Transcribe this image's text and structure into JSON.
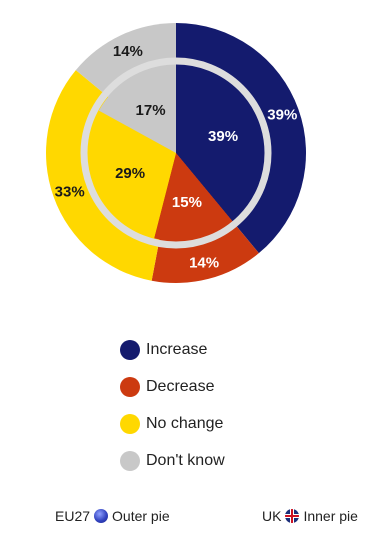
{
  "chart_data": {
    "type": "pie",
    "categories": [
      "Increase",
      "Decrease",
      "No change",
      "Don't know"
    ],
    "colors": [
      "#141b6e",
      "#cc3a10",
      "#ffd800",
      "#c8c8c8"
    ],
    "series": [
      {
        "name": "Outer pie",
        "values": [
          39,
          14,
          33,
          14
        ]
      },
      {
        "name": "Inner pie",
        "values": [
          39,
          15,
          29,
          17
        ]
      }
    ]
  },
  "footer": {
    "outer_country": "EU27",
    "outer_label": "Outer pie",
    "inner_country": "UK",
    "inner_label": "Inner pie"
  }
}
